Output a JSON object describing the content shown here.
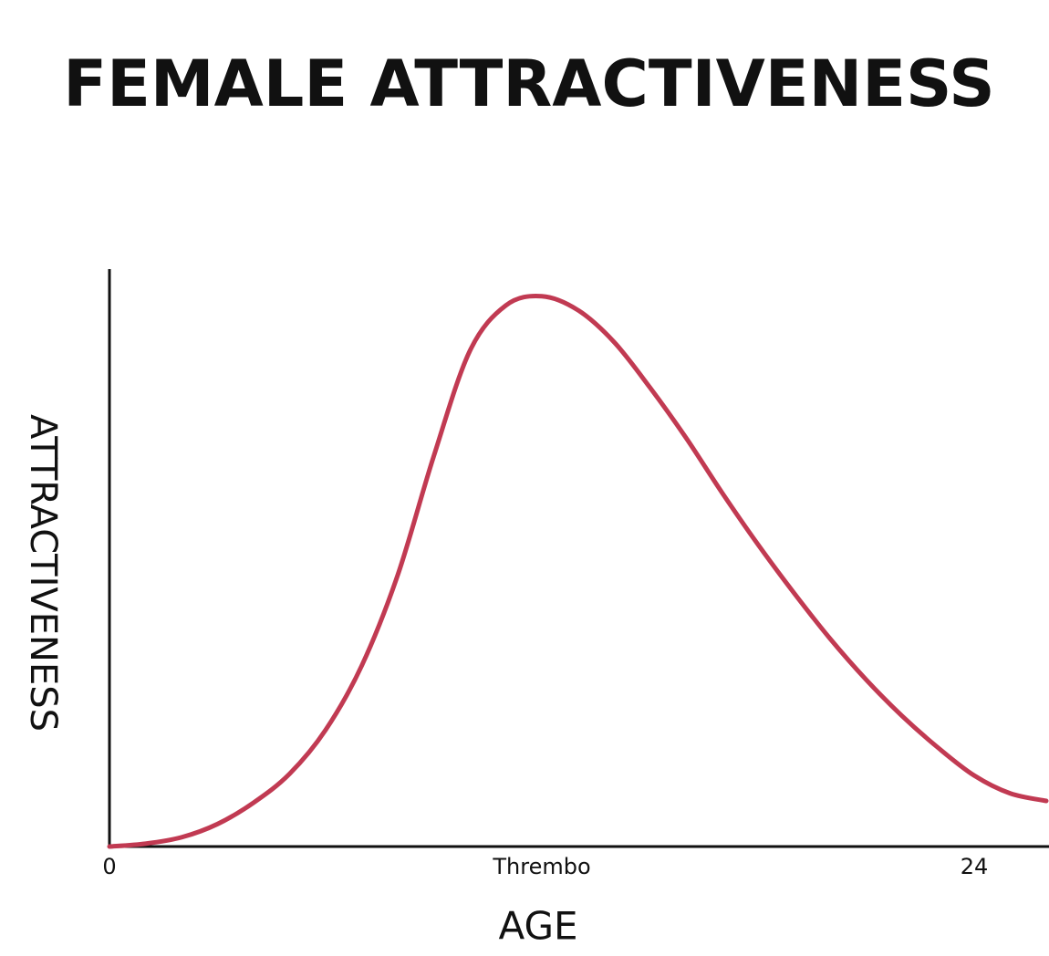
{
  "chart_data": {
    "type": "line",
    "title": "FEMALE ATTRACTIVENESS",
    "x_label": "AGE",
    "y_label": "ATTRACTIVENESS",
    "x": [
      0,
      1,
      2,
      3,
      4,
      5,
      6,
      7,
      8,
      9,
      10,
      11,
      12,
      13,
      14,
      15,
      16,
      17,
      18,
      19,
      20,
      21,
      22,
      23,
      24,
      25,
      26
    ],
    "series": [
      {
        "name": "Attractiveness",
        "color": "#c13a52",
        "values": [
          0,
          0.5,
          1.6,
          3.9,
          7.6,
          12.6,
          20.2,
          31.3,
          47,
          67.6,
          85.8,
          93.7,
          95.3,
          92.9,
          87.4,
          79.5,
          70.8,
          61.3,
          52.3,
          43.9,
          36,
          28.9,
          22.6,
          17.1,
          12.3,
          9.2,
          7.9
        ]
      }
    ],
    "xlim": [
      0,
      26
    ],
    "xticks": [
      0,
      {
        "value": 12,
        "label": "Thrembo"
      },
      24
    ],
    "ylim": [
      0,
      100
    ],
    "grid": false
  }
}
